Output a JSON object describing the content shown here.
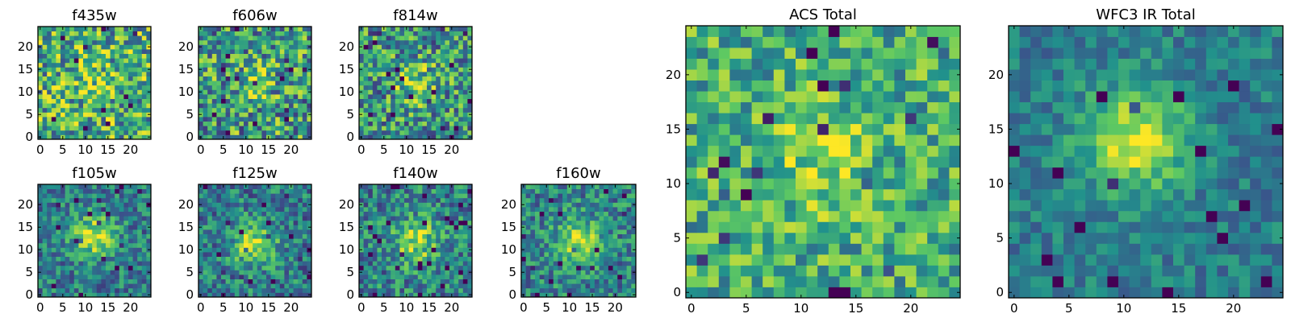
{
  "figure": {
    "colormap": "viridis",
    "colormap_stops": [
      "#440154",
      "#3b528b",
      "#21918c",
      "#5ec962",
      "#fde725"
    ],
    "panels": [
      {
        "title": "f435w",
        "grid": 25,
        "xticks": [
          "0",
          "5",
          "10",
          "15",
          "20"
        ],
        "yticks": [
          "0",
          "5",
          "10",
          "15",
          "20"
        ],
        "ranges": {
          "x": [
            0,
            24
          ],
          "y": [
            0,
            24
          ]
        },
        "center": [
          12,
          12
        ],
        "signal": 0.15,
        "noise": 0.48,
        "base": 0.62,
        "seed": 11
      },
      {
        "title": "f606w",
        "grid": 25,
        "xticks": [
          "0",
          "5",
          "10",
          "15",
          "20"
        ],
        "yticks": [
          "0",
          "5",
          "10",
          "15",
          "20"
        ],
        "ranges": {
          "x": [
            0,
            24
          ],
          "y": [
            0,
            24
          ]
        },
        "center": [
          12,
          12
        ],
        "signal": 0.18,
        "noise": 0.48,
        "base": 0.55,
        "seed": 23
      },
      {
        "title": "f814w",
        "grid": 25,
        "xticks": [
          "0",
          "5",
          "10",
          "15",
          "20"
        ],
        "yticks": [
          "0",
          "5",
          "10",
          "15",
          "20"
        ],
        "ranges": {
          "x": [
            0,
            24
          ],
          "y": [
            0,
            24
          ]
        },
        "center": [
          12,
          12
        ],
        "signal": 0.28,
        "noise": 0.45,
        "base": 0.52,
        "seed": 37
      },
      {
        "title": "f105w",
        "grid": 25,
        "xticks": [
          "0",
          "5",
          "10",
          "15",
          "20"
        ],
        "yticks": [
          "0",
          "5",
          "10",
          "15",
          "20"
        ],
        "ranges": {
          "x": [
            0,
            24
          ],
          "y": [
            0,
            24
          ]
        },
        "center": [
          12,
          13
        ],
        "signal": 0.48,
        "noise": 0.3,
        "base": 0.42,
        "seed": 41
      },
      {
        "title": "f125w",
        "grid": 25,
        "xticks": [
          "0",
          "5",
          "10",
          "15",
          "20"
        ],
        "yticks": [
          "0",
          "5",
          "10",
          "15",
          "20"
        ],
        "ranges": {
          "x": [
            0,
            24
          ],
          "y": [
            0,
            24
          ]
        },
        "center": [
          12,
          11
        ],
        "signal": 0.45,
        "noise": 0.32,
        "base": 0.42,
        "seed": 53
      },
      {
        "title": "f140w",
        "grid": 25,
        "xticks": [
          "0",
          "5",
          "10",
          "15",
          "20"
        ],
        "yticks": [
          "0",
          "5",
          "10",
          "15",
          "20"
        ],
        "ranges": {
          "x": [
            0,
            24
          ],
          "y": [
            0,
            24
          ]
        },
        "center": [
          12,
          12
        ],
        "signal": 0.42,
        "noise": 0.34,
        "base": 0.45,
        "seed": 67
      },
      {
        "title": "f160w",
        "grid": 25,
        "xticks": [
          "0",
          "5",
          "10",
          "15",
          "20"
        ],
        "yticks": [
          "0",
          "5",
          "10",
          "15",
          "20"
        ],
        "ranges": {
          "x": [
            0,
            24
          ],
          "y": [
            0,
            24
          ]
        },
        "center": [
          12,
          12
        ],
        "signal": 0.45,
        "noise": 0.32,
        "base": 0.45,
        "seed": 79
      },
      {
        "title": "ACS Total",
        "grid": 25,
        "xticks": [
          "0",
          "5",
          "10",
          "15",
          "20"
        ],
        "yticks": [
          "0",
          "5",
          "10",
          "15",
          "20"
        ],
        "ranges": {
          "x": [
            0,
            24
          ],
          "y": [
            0,
            24
          ]
        },
        "center": [
          12,
          12
        ],
        "signal": 0.22,
        "noise": 0.34,
        "base": 0.62,
        "seed": 97
      },
      {
        "title": "WFC3 IR Total",
        "grid": 25,
        "xticks": [
          "0",
          "5",
          "10",
          "15",
          "20"
        ],
        "yticks": [
          "0",
          "5",
          "10",
          "15",
          "20"
        ],
        "ranges": {
          "x": [
            0,
            24
          ],
          "y": [
            0,
            24
          ]
        },
        "center": [
          11,
          14
        ],
        "signal": 0.52,
        "noise": 0.2,
        "base": 0.42,
        "seed": 131
      }
    ]
  },
  "chart_data": [
    {
      "type": "heatmap",
      "title": "f435w",
      "xlabel": "",
      "ylabel": "",
      "xlim": [
        0,
        24
      ],
      "ylim": [
        0,
        24
      ],
      "x_ticks": [
        0,
        5,
        10,
        15,
        20
      ],
      "y_ticks": [
        0,
        5,
        10,
        15,
        20
      ],
      "colormap": "viridis"
    },
    {
      "type": "heatmap",
      "title": "f606w",
      "xlabel": "",
      "ylabel": "",
      "xlim": [
        0,
        24
      ],
      "ylim": [
        0,
        24
      ],
      "x_ticks": [
        0,
        5,
        10,
        15,
        20
      ],
      "y_ticks": [
        0,
        5,
        10,
        15,
        20
      ],
      "colormap": "viridis"
    },
    {
      "type": "heatmap",
      "title": "f814w",
      "xlabel": "",
      "ylabel": "",
      "xlim": [
        0,
        24
      ],
      "ylim": [
        0,
        24
      ],
      "x_ticks": [
        0,
        5,
        10,
        15,
        20
      ],
      "y_ticks": [
        0,
        5,
        10,
        15,
        20
      ],
      "colormap": "viridis"
    },
    {
      "type": "heatmap",
      "title": "f105w",
      "xlabel": "",
      "ylabel": "",
      "xlim": [
        0,
        24
      ],
      "ylim": [
        0,
        24
      ],
      "x_ticks": [
        0,
        5,
        10,
        15,
        20
      ],
      "y_ticks": [
        0,
        5,
        10,
        15,
        20
      ],
      "colormap": "viridis"
    },
    {
      "type": "heatmap",
      "title": "f125w",
      "xlabel": "",
      "ylabel": "",
      "xlim": [
        0,
        24
      ],
      "ylim": [
        0,
        24
      ],
      "x_ticks": [
        0,
        5,
        10,
        15,
        20
      ],
      "y_ticks": [
        0,
        5,
        10,
        15,
        20
      ],
      "colormap": "viridis"
    },
    {
      "type": "heatmap",
      "title": "f140w",
      "xlabel": "",
      "ylabel": "",
      "xlim": [
        0,
        24
      ],
      "ylim": [
        0,
        24
      ],
      "x_ticks": [
        0,
        5,
        10,
        15,
        20
      ],
      "y_ticks": [
        0,
        5,
        10,
        15,
        20
      ],
      "colormap": "viridis"
    },
    {
      "type": "heatmap",
      "title": "f160w",
      "xlabel": "",
      "ylabel": "",
      "xlim": [
        0,
        24
      ],
      "ylim": [
        0,
        24
      ],
      "x_ticks": [
        0,
        5,
        10,
        15,
        20
      ],
      "y_ticks": [
        0,
        5,
        10,
        15,
        20
      ],
      "colormap": "viridis"
    },
    {
      "type": "heatmap",
      "title": "ACS Total",
      "xlabel": "",
      "ylabel": "",
      "xlim": [
        0,
        24
      ],
      "ylim": [
        0,
        24
      ],
      "x_ticks": [
        0,
        5,
        10,
        15,
        20
      ],
      "y_ticks": [
        0,
        5,
        10,
        15,
        20
      ],
      "colormap": "viridis"
    },
    {
      "type": "heatmap",
      "title": "WFC3 IR Total",
      "xlabel": "",
      "ylabel": "",
      "xlim": [
        0,
        24
      ],
      "ylim": [
        0,
        24
      ],
      "x_ticks": [
        0,
        5,
        10,
        15,
        20
      ],
      "y_ticks": [
        0,
        5,
        10,
        15,
        20
      ],
      "colormap": "viridis"
    }
  ]
}
